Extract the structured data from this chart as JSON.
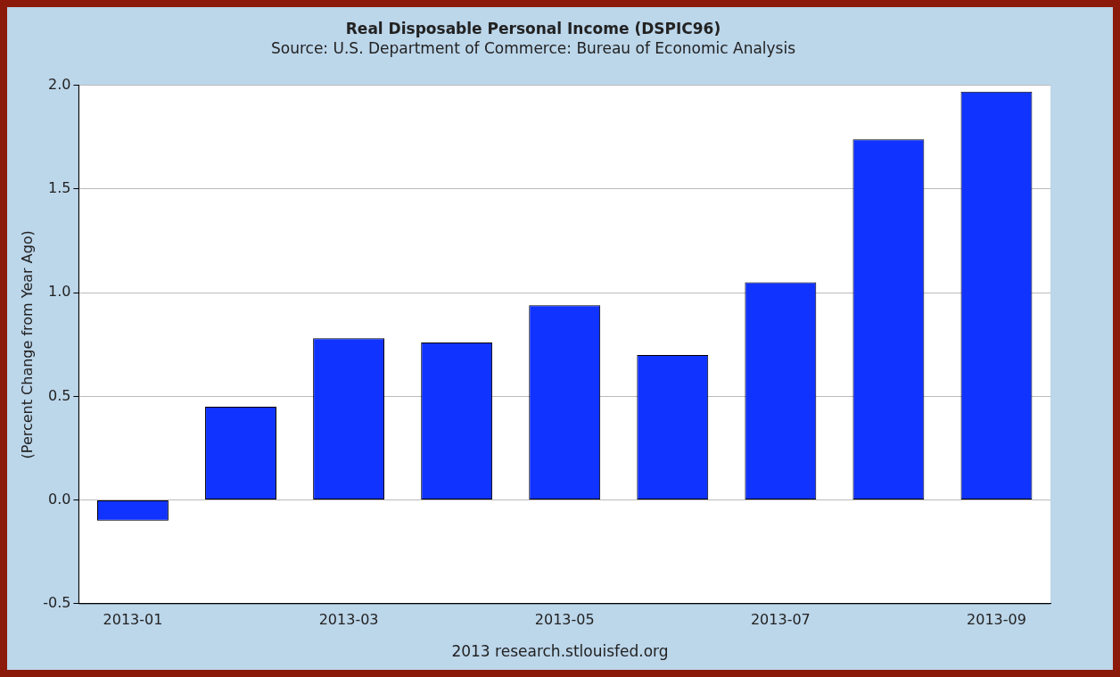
{
  "chart_data": {
    "type": "bar",
    "title": "Real Disposable Personal Income (DSPIC96)",
    "subtitle": "Source: U.S. Department of Commerce: Bureau of Economic Analysis",
    "ylabel": "(Percent Change from Year Ago)",
    "categories": [
      "2013-01",
      null,
      "2013-03",
      null,
      "2013-05",
      null,
      "2013-07",
      null,
      "2013-09"
    ],
    "values": [
      -0.1,
      0.45,
      0.78,
      0.76,
      0.94,
      0.7,
      1.05,
      1.74,
      1.97
    ],
    "color": "#1133ff",
    "ylim": [
      -0.5,
      2.0
    ],
    "yticks": [
      {
        "value": -0.5,
        "label": "-0.5"
      },
      {
        "value": 0,
        "label": "0.0"
      },
      {
        "value": 0.5,
        "label": "0.5"
      },
      {
        "value": 1,
        "label": "1.0"
      },
      {
        "value": 1.5,
        "label": "1.5"
      },
      {
        "value": 2,
        "label": "2.0"
      }
    ],
    "grid": "y",
    "legend": false,
    "annotations": [
      "2013 research.stlouisfed.org"
    ]
  }
}
